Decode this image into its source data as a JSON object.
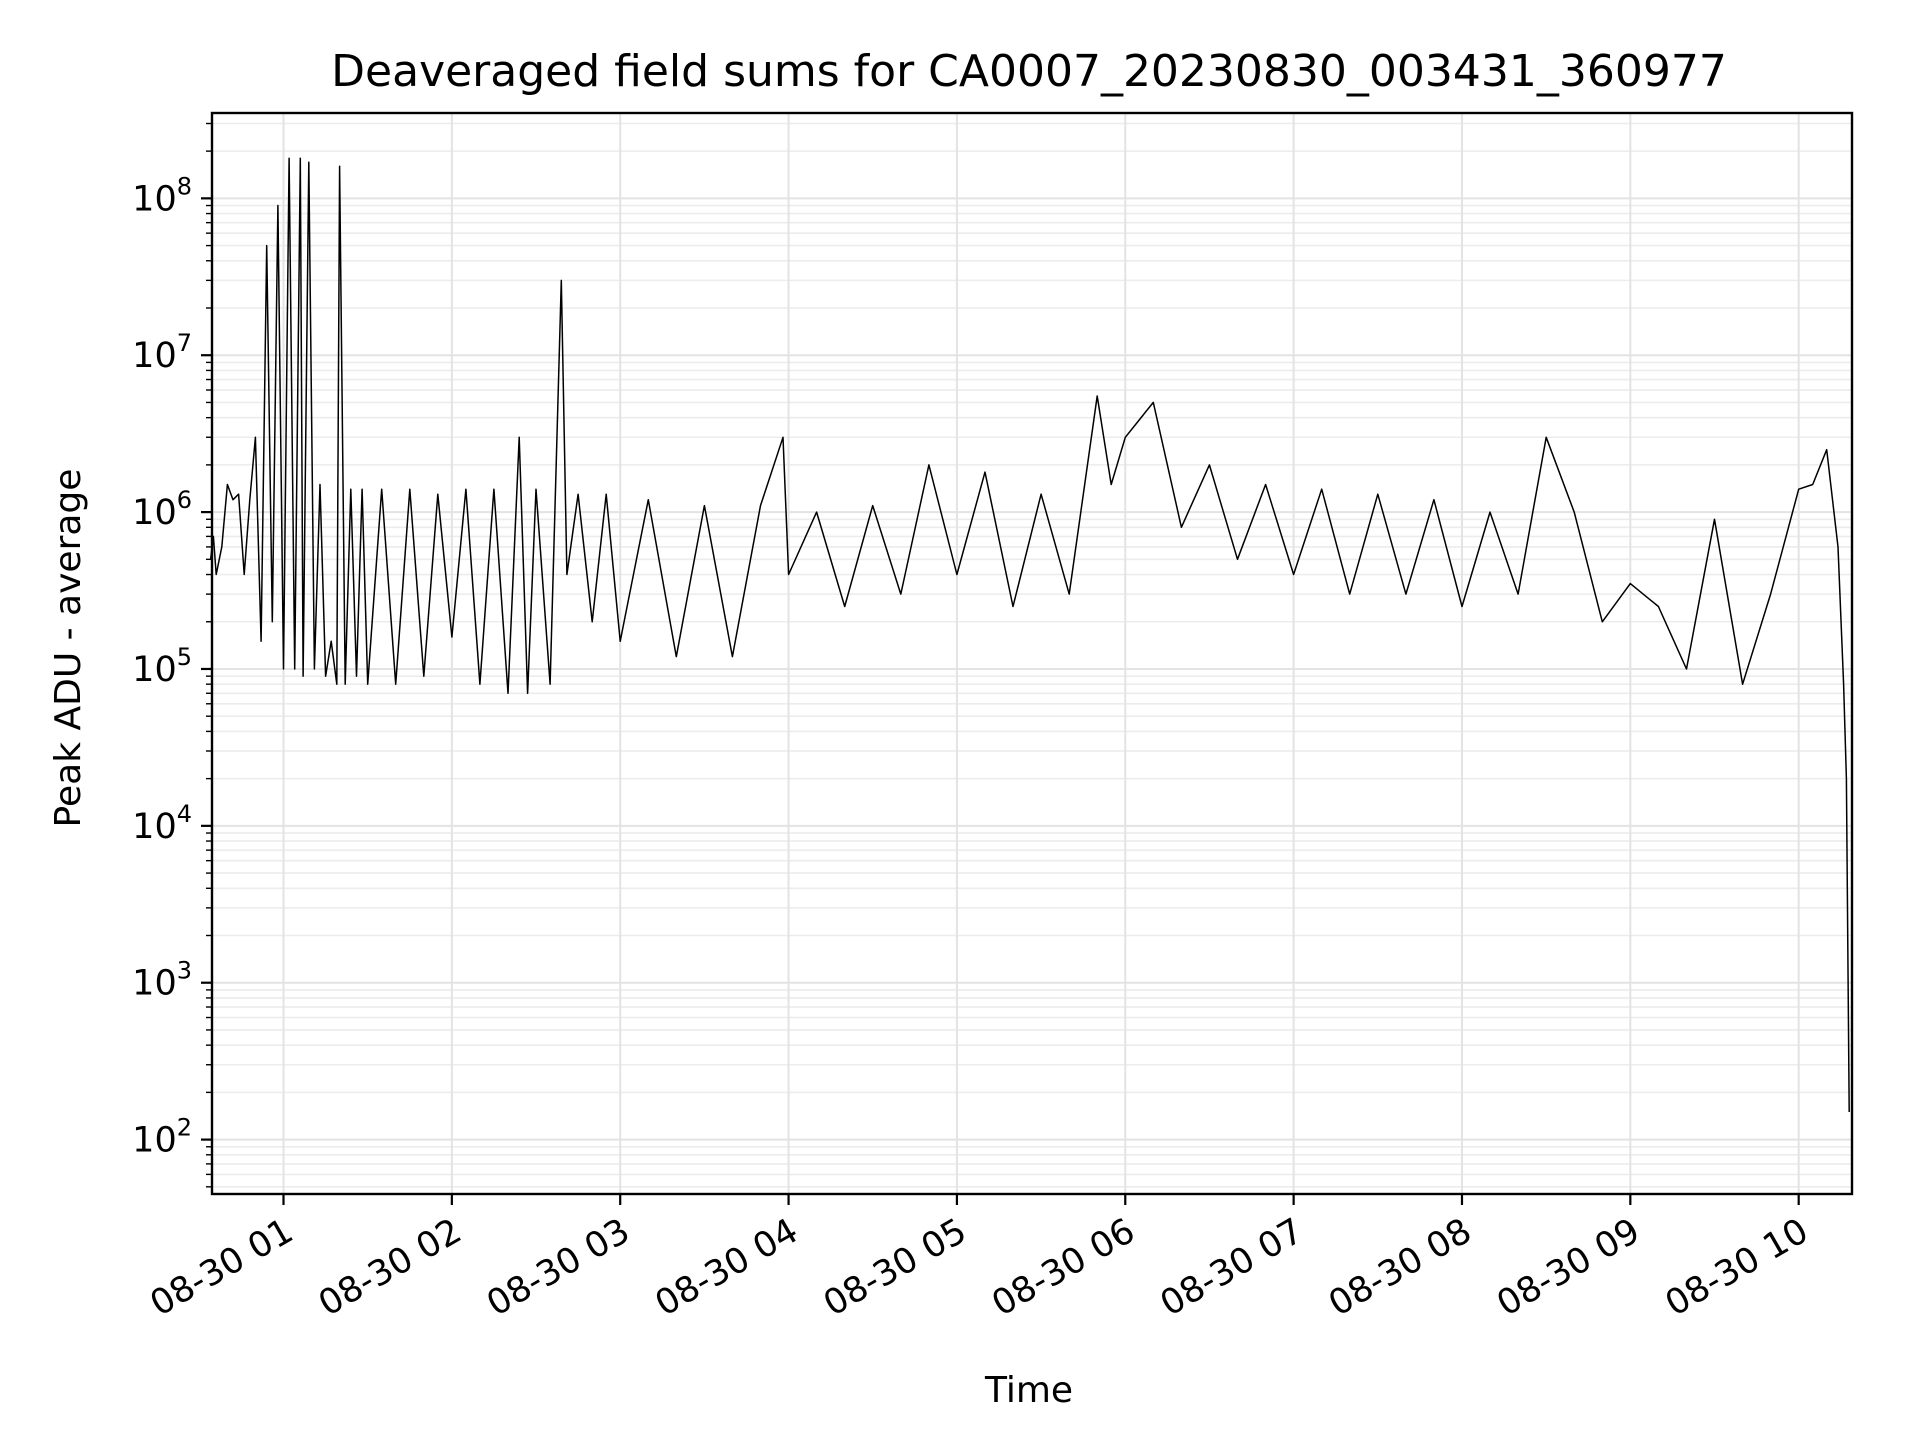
{
  "chart_data": {
    "type": "line",
    "title": "Deaveraged field sums for CA0007_20230830_003431_360977",
    "xlabel": "Time",
    "ylabel": "Peak ADU - average",
    "yscale": "log",
    "ylim": [
      45,
      350000000
    ],
    "xlim": [
      "2023-08-30 00:34:31",
      "2023-08-30 10:19:00"
    ],
    "grid": true,
    "line_color": "#000000",
    "x_ticks": [
      {
        "value": "2023-08-30 01:00",
        "label": "08-30 01"
      },
      {
        "value": "2023-08-30 02:00",
        "label": "08-30 02"
      },
      {
        "value": "2023-08-30 03:00",
        "label": "08-30 03"
      },
      {
        "value": "2023-08-30 04:00",
        "label": "08-30 04"
      },
      {
        "value": "2023-08-30 05:00",
        "label": "08-30 05"
      },
      {
        "value": "2023-08-30 06:00",
        "label": "08-30 06"
      },
      {
        "value": "2023-08-30 07:00",
        "label": "08-30 07"
      },
      {
        "value": "2023-08-30 08:00",
        "label": "08-30 08"
      },
      {
        "value": "2023-08-30 09:00",
        "label": "08-30 09"
      },
      {
        "value": "2023-08-30 10:00",
        "label": "08-30 10"
      }
    ],
    "y_ticks": [
      {
        "value": 100,
        "base": "10",
        "exp": "2"
      },
      {
        "value": 1000,
        "base": "10",
        "exp": "3"
      },
      {
        "value": 10000,
        "base": "10",
        "exp": "4"
      },
      {
        "value": 100000,
        "base": "10",
        "exp": "5"
      },
      {
        "value": 1000000,
        "base": "10",
        "exp": "6"
      },
      {
        "value": 10000000,
        "base": "10",
        "exp": "7"
      },
      {
        "value": 100000000,
        "base": "10",
        "exp": "8"
      }
    ],
    "series": [
      {
        "x": [
          "2023-08-30 00:34",
          "2023-08-30 00:35",
          "2023-08-30 00:36",
          "2023-08-30 00:38",
          "2023-08-30 00:40",
          "2023-08-30 00:42",
          "2023-08-30 00:44",
          "2023-08-30 00:46",
          "2023-08-30 00:48",
          "2023-08-30 00:50",
          "2023-08-30 00:52",
          "2023-08-30 00:54",
          "2023-08-30 00:56",
          "2023-08-30 00:58",
          "2023-08-30 01:00",
          "2023-08-30 01:02",
          "2023-08-30 01:04",
          "2023-08-30 01:06",
          "2023-08-30 01:07",
          "2023-08-30 01:09",
          "2023-08-30 01:11",
          "2023-08-30 01:13",
          "2023-08-30 01:15",
          "2023-08-30 01:17",
          "2023-08-30 01:19",
          "2023-08-30 01:20",
          "2023-08-30 01:22",
          "2023-08-30 01:24",
          "2023-08-30 01:26",
          "2023-08-30 01:28",
          "2023-08-30 01:30",
          "2023-08-30 01:35",
          "2023-08-30 01:40",
          "2023-08-30 01:45",
          "2023-08-30 01:50",
          "2023-08-30 01:55",
          "2023-08-30 02:00",
          "2023-08-30 02:05",
          "2023-08-30 02:10",
          "2023-08-30 02:15",
          "2023-08-30 02:20",
          "2023-08-30 02:24",
          "2023-08-30 02:27",
          "2023-08-30 02:30",
          "2023-08-30 02:35",
          "2023-08-30 02:39",
          "2023-08-30 02:41",
          "2023-08-30 02:45",
          "2023-08-30 02:50",
          "2023-08-30 02:55",
          "2023-08-30 03:00",
          "2023-08-30 03:10",
          "2023-08-30 03:20",
          "2023-08-30 03:30",
          "2023-08-30 03:40",
          "2023-08-30 03:50",
          "2023-08-30 03:58",
          "2023-08-30 04:00",
          "2023-08-30 04:10",
          "2023-08-30 04:20",
          "2023-08-30 04:30",
          "2023-08-30 04:40",
          "2023-08-30 04:50",
          "2023-08-30 05:00",
          "2023-08-30 05:10",
          "2023-08-30 05:20",
          "2023-08-30 05:30",
          "2023-08-30 05:40",
          "2023-08-30 05:50",
          "2023-08-30 05:55",
          "2023-08-30 06:00",
          "2023-08-30 06:10",
          "2023-08-30 06:20",
          "2023-08-30 06:30",
          "2023-08-30 06:40",
          "2023-08-30 06:50",
          "2023-08-30 07:00",
          "2023-08-30 07:10",
          "2023-08-30 07:20",
          "2023-08-30 07:30",
          "2023-08-30 07:40",
          "2023-08-30 07:50",
          "2023-08-30 08:00",
          "2023-08-30 08:10",
          "2023-08-30 08:20",
          "2023-08-30 08:30",
          "2023-08-30 08:40",
          "2023-08-30 08:50",
          "2023-08-30 09:00",
          "2023-08-30 09:10",
          "2023-08-30 09:20",
          "2023-08-30 09:30",
          "2023-08-30 09:40",
          "2023-08-30 09:50",
          "2023-08-30 10:00",
          "2023-08-30 10:05",
          "2023-08-30 10:10",
          "2023-08-30 10:14",
          "2023-08-30 10:16",
          "2023-08-30 10:17",
          "2023-08-30 10:18"
        ],
        "y": [
          500000,
          700000,
          400000,
          600000,
          1500000,
          1200000,
          1300000,
          400000,
          1200000,
          3000000,
          150000,
          50000000,
          200000,
          90000000,
          100000,
          180000000,
          100000,
          180000000,
          90000,
          170000000,
          100000,
          1500000,
          90000,
          150000,
          80000,
          160000000,
          80000,
          1400000,
          90000,
          1400000,
          80000,
          1400000,
          80000,
          1400000,
          90000,
          1300000,
          160000,
          1400000,
          80000,
          1400000,
          70000,
          3000000,
          70000,
          1400000,
          80000,
          30000000,
          400000,
          1300000,
          200000,
          1300000,
          150000,
          1200000,
          120000,
          1100000,
          120000,
          1100000,
          3000000,
          400000,
          1000000,
          250000,
          1100000,
          300000,
          2000000,
          400000,
          1800000,
          250000,
          1300000,
          300000,
          5500000,
          1500000,
          3000000,
          5000000,
          800000,
          2000000,
          500000,
          1500000,
          400000,
          1400000,
          300000,
          1300000,
          300000,
          1200000,
          250000,
          1000000,
          300000,
          3000000,
          1000000,
          200000,
          350000,
          250000,
          100000,
          900000,
          80000,
          300000,
          1400000,
          1500000,
          2500000,
          600000,
          80000,
          20000,
          150
        ]
      }
    ]
  }
}
